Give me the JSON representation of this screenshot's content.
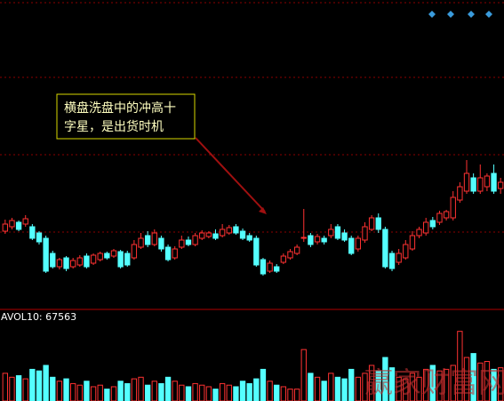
{
  "chart_data": {
    "type": "candlestick",
    "annotation": [
      "横盘洗盘中的冲高十",
      "字星，是出货时机"
    ],
    "volume_label": "AVOL10: 67563",
    "watermark": "赢家财富网",
    "ylim": [
      0,
      350
    ],
    "open": [
      90,
      95,
      100,
      98,
      95,
      88,
      82,
      65,
      50,
      60,
      50,
      52,
      62,
      54,
      58,
      65,
      62,
      67,
      65,
      60,
      72,
      85,
      75,
      82,
      72,
      60,
      72,
      80,
      75,
      82,
      84,
      87,
      85,
      88,
      95,
      90,
      85,
      82,
      58,
      45,
      50,
      55,
      60,
      65,
      82,
      85,
      78,
      82,
      85,
      95,
      88,
      82,
      70,
      80,
      92,
      105,
      92,
      65,
      55,
      60,
      70,
      85,
      88,
      102,
      100,
      105,
      105,
      125,
      135,
      150,
      135,
      140,
      155,
      138
    ],
    "high": [
      103,
      105,
      102,
      108,
      98,
      90,
      85,
      68,
      60,
      62,
      60,
      63,
      65,
      65,
      67,
      67,
      70,
      69,
      68,
      80,
      88,
      90,
      92,
      85,
      75,
      73,
      85,
      84,
      88,
      91,
      90,
      92,
      98,
      97,
      98,
      93,
      88,
      85,
      60,
      57,
      53,
      65,
      70,
      75,
      115,
      88,
      87,
      85,
      98,
      98,
      92,
      85,
      85,
      100,
      108,
      110,
      95,
      68,
      70,
      80,
      90,
      95,
      105,
      106,
      113,
      114,
      135,
      145,
      170,
      155,
      165,
      155,
      165,
      150
    ],
    "low": [
      87,
      92,
      90,
      95,
      80,
      75,
      43,
      48,
      47,
      45,
      48,
      50,
      48,
      52,
      56,
      58,
      60,
      48,
      50,
      58,
      70,
      72,
      73,
      67,
      56,
      58,
      70,
      73,
      73,
      80,
      82,
      80,
      83,
      86,
      86,
      80,
      78,
      50,
      40,
      43,
      43,
      53,
      58,
      63,
      78,
      72,
      75,
      75,
      82,
      80,
      78,
      63,
      67,
      77,
      90,
      88,
      48,
      45,
      52,
      58,
      68,
      82,
      85,
      92,
      97,
      102,
      102,
      122,
      132,
      132,
      132,
      135,
      132,
      132
    ],
    "close": [
      98,
      102,
      92,
      104,
      82,
      78,
      45,
      50,
      58,
      48,
      57,
      60,
      50,
      63,
      65,
      60,
      68,
      50,
      52,
      75,
      82,
      75,
      88,
      70,
      58,
      70,
      80,
      75,
      85,
      88,
      88,
      82,
      92,
      94,
      88,
      82,
      80,
      52,
      42,
      54,
      45,
      62,
      67,
      72,
      83,
      75,
      84,
      78,
      92,
      82,
      80,
      65,
      82,
      95,
      105,
      92,
      50,
      48,
      65,
      75,
      85,
      92,
      100,
      95,
      110,
      112,
      128,
      140,
      155,
      135,
      150,
      152,
      135,
      145
    ],
    "volume": [
      35,
      30,
      32,
      28,
      40,
      38,
      45,
      30,
      25,
      28,
      22,
      20,
      25,
      18,
      20,
      15,
      18,
      25,
      22,
      28,
      30,
      20,
      25,
      22,
      30,
      25,
      20,
      18,
      22,
      20,
      18,
      15,
      22,
      20,
      18,
      25,
      22,
      28,
      40,
      25,
      20,
      18,
      15,
      15,
      65,
      35,
      30,
      25,
      35,
      30,
      28,
      40,
      30,
      35,
      45,
      38,
      55,
      42,
      30,
      28,
      35,
      30,
      40,
      45,
      38,
      40,
      45,
      88,
      55,
      60,
      48,
      50,
      40,
      42
    ],
    "volume_ylim": [
      0,
      100
    ],
    "up_color": "#ff3232",
    "down_color": "#54ffff"
  }
}
